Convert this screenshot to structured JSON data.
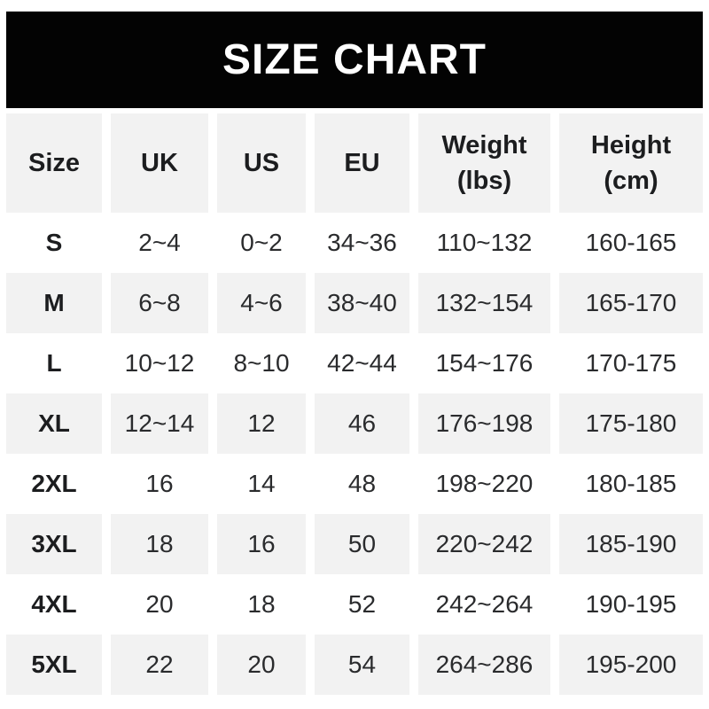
{
  "title": "SIZE CHART",
  "colors": {
    "banner_bg": "#030303",
    "banner_text": "#ffffff",
    "stripe_bg": "#f2f2f2",
    "header_text": "#1c1d1f",
    "value_text": "#2a2b2d"
  },
  "header": {
    "columns": [
      {
        "label": "Size",
        "sub": ""
      },
      {
        "label": "UK",
        "sub": ""
      },
      {
        "label": "US",
        "sub": ""
      },
      {
        "label": "EU",
        "sub": ""
      },
      {
        "label": "Weight",
        "sub": "(lbs)"
      },
      {
        "label": "Height",
        "sub": "(cm)"
      }
    ]
  },
  "chart_data": {
    "type": "table",
    "title": "SIZE CHART",
    "columns": [
      "Size",
      "UK",
      "US",
      "EU",
      "Weight (lbs)",
      "Height (cm)"
    ],
    "rows": [
      [
        "S",
        "2~4",
        "0~2",
        "34~36",
        "110~132",
        "160-165"
      ],
      [
        "M",
        "6~8",
        "4~6",
        "38~40",
        "132~154",
        "165-170"
      ],
      [
        "L",
        "10~12",
        "8~10",
        "42~44",
        "154~176",
        "170-175"
      ],
      [
        "XL",
        "12~14",
        "12",
        "46",
        "176~198",
        "175-180"
      ],
      [
        "2XL",
        "16",
        "14",
        "48",
        "198~220",
        "180-185"
      ],
      [
        "3XL",
        "18",
        "16",
        "50",
        "220~242",
        "185-190"
      ],
      [
        "4XL",
        "20",
        "18",
        "52",
        "242~264",
        "190-195"
      ],
      [
        "5XL",
        "22",
        "20",
        "54",
        "264~286",
        "195-200"
      ]
    ],
    "layout": {
      "striped": true,
      "stripe_order": "header-gray, then alternating white/gray data rows",
      "column_gutters": true
    }
  }
}
